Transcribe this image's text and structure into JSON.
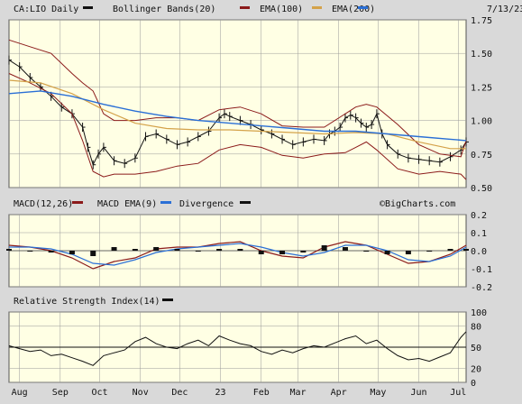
{
  "header": {
    "symbol_label": "CA:LIO Daily",
    "legend": [
      {
        "label": "Bollinger Bands(20)",
        "color": "#8b1a1a"
      },
      {
        "label": "EMA(100)",
        "color": "#d4a24a"
      },
      {
        "label": "EMA(200)",
        "color": "#2a6fd6"
      }
    ],
    "date": "7/13/23",
    "price_swatch_color": "#111111"
  },
  "watermark": "©BigCharts.com",
  "macd_header": {
    "label": "MACD(12,26)",
    "legend": [
      {
        "label": "MACD EMA(9)",
        "color": "#2a6fd6"
      },
      {
        "label": "Divergence",
        "color": "#111111"
      }
    ],
    "macd_color": "#8b1a1a"
  },
  "rsi_header": {
    "label": "Relative Strength Index(14)",
    "swatch_color": "#111111"
  },
  "colors": {
    "bollinger": "#8b1a1a",
    "ema100": "#d4a24a",
    "ema200": "#2a6fd6",
    "price": "#111111",
    "macd": "#8b1a1a",
    "macd_signal": "#2a6fd6",
    "divergence": "#111111",
    "rsi": "#111111",
    "panel_bg": "#ffffe4"
  },
  "chart_data": [
    {
      "type": "line",
      "title": "CA:LIO Daily",
      "x_labels": [
        "Aug",
        "Sep",
        "Oct",
        "Nov",
        "Dec",
        "23",
        "Feb",
        "Mar",
        "Apr",
        "May",
        "Jun",
        "Jul"
      ],
      "x_label_days": [
        8,
        39,
        69,
        100,
        130,
        161,
        192,
        220,
        251,
        281,
        312,
        342
      ],
      "x_range": [
        0,
        348
      ],
      "ylim": [
        0.5,
        1.75
      ],
      "y_ticks": [
        "0.50",
        "0.75",
        "1.00",
        "1.25",
        "1.50",
        "1.75"
      ],
      "y_tick_values": [
        0.5,
        0.75,
        1.0,
        1.25,
        1.5,
        1.75
      ],
      "grid": true,
      "series": [
        {
          "name": "Price",
          "x": [
            0,
            8,
            16,
            24,
            32,
            40,
            48,
            56,
            60,
            64,
            68,
            72,
            80,
            88,
            96,
            104,
            112,
            120,
            128,
            136,
            144,
            152,
            160,
            164,
            168,
            176,
            184,
            192,
            200,
            208,
            216,
            224,
            232,
            240,
            244,
            248,
            252,
            256,
            260,
            264,
            268,
            272,
            276,
            280,
            284,
            288,
            296,
            304,
            312,
            320,
            328,
            336,
            344,
            348
          ],
          "y": [
            1.45,
            1.4,
            1.32,
            1.25,
            1.18,
            1.1,
            1.05,
            0.95,
            0.8,
            0.67,
            0.75,
            0.8,
            0.7,
            0.68,
            0.72,
            0.88,
            0.9,
            0.86,
            0.82,
            0.84,
            0.88,
            0.92,
            1.02,
            1.05,
            1.03,
            1.0,
            0.97,
            0.93,
            0.9,
            0.86,
            0.82,
            0.84,
            0.86,
            0.85,
            0.9,
            0.92,
            0.95,
            1.02,
            1.04,
            1.02,
            0.98,
            0.95,
            0.97,
            1.05,
            0.9,
            0.82,
            0.75,
            0.72,
            0.71,
            0.7,
            0.69,
            0.73,
            0.78,
            0.84
          ]
        },
        {
          "name": "Bollinger Upper",
          "x": [
            0,
            16,
            32,
            48,
            56,
            64,
            72,
            80,
            96,
            112,
            128,
            144,
            160,
            176,
            192,
            208,
            224,
            240,
            256,
            264,
            272,
            280,
            296,
            312,
            328,
            344,
            348
          ],
          "y": [
            1.6,
            1.55,
            1.5,
            1.35,
            1.28,
            1.22,
            1.05,
            1.0,
            1.0,
            1.02,
            1.02,
            1.0,
            1.08,
            1.1,
            1.05,
            0.96,
            0.95,
            0.95,
            1.05,
            1.1,
            1.12,
            1.1,
            0.97,
            0.82,
            0.75,
            0.73,
            0.85
          ]
        },
        {
          "name": "Bollinger Lower",
          "x": [
            0,
            16,
            32,
            48,
            56,
            64,
            72,
            80,
            96,
            112,
            128,
            144,
            160,
            176,
            192,
            208,
            224,
            240,
            256,
            264,
            272,
            280,
            296,
            312,
            328,
            344,
            348
          ],
          "y": [
            1.35,
            1.28,
            1.2,
            1.05,
            0.85,
            0.62,
            0.58,
            0.6,
            0.6,
            0.62,
            0.66,
            0.68,
            0.78,
            0.82,
            0.8,
            0.74,
            0.72,
            0.75,
            0.76,
            0.8,
            0.84,
            0.78,
            0.64,
            0.6,
            0.62,
            0.6,
            0.56
          ]
        },
        {
          "name": "EMA(100)",
          "x": [
            0,
            24,
            48,
            72,
            96,
            120,
            144,
            168,
            192,
            216,
            240,
            264,
            288,
            312,
            336,
            348
          ],
          "y": [
            1.3,
            1.28,
            1.2,
            1.08,
            0.98,
            0.94,
            0.93,
            0.93,
            0.92,
            0.91,
            0.9,
            0.91,
            0.9,
            0.84,
            0.79,
            0.79
          ]
        },
        {
          "name": "EMA(200)",
          "x": [
            0,
            24,
            48,
            72,
            96,
            120,
            144,
            168,
            192,
            216,
            240,
            264,
            288,
            312,
            336,
            348
          ],
          "y": [
            1.2,
            1.22,
            1.18,
            1.12,
            1.07,
            1.03,
            1.0,
            0.98,
            0.96,
            0.94,
            0.92,
            0.92,
            0.9,
            0.88,
            0.86,
            0.85
          ]
        }
      ]
    },
    {
      "type": "line",
      "title": "MACD(12,26)",
      "ylim": [
        -0.2,
        0.2
      ],
      "y_ticks": [
        "0.2",
        "0.1",
        "0.0",
        "-0.1",
        "-0.2"
      ],
      "y_tick_values": [
        0.2,
        0.1,
        0.0,
        -0.1,
        -0.2
      ],
      "x_range": [
        0,
        348
      ],
      "grid": true,
      "series": [
        {
          "name": "MACD(12,26)",
          "x": [
            0,
            16,
            32,
            48,
            64,
            80,
            96,
            112,
            128,
            144,
            160,
            176,
            192,
            208,
            224,
            240,
            256,
            272,
            288,
            304,
            320,
            336,
            348
          ],
          "y": [
            0.03,
            0.02,
            0.0,
            -0.04,
            -0.1,
            -0.06,
            -0.04,
            0.01,
            0.02,
            0.02,
            0.04,
            0.05,
            0.0,
            -0.03,
            -0.04,
            0.02,
            0.05,
            0.03,
            -0.02,
            -0.07,
            -0.06,
            -0.02,
            0.03
          ]
        },
        {
          "name": "MACD EMA(9)",
          "x": [
            0,
            16,
            32,
            48,
            64,
            80,
            96,
            112,
            128,
            144,
            160,
            176,
            192,
            208,
            224,
            240,
            256,
            272,
            288,
            304,
            320,
            336,
            348
          ],
          "y": [
            0.02,
            0.02,
            0.01,
            -0.02,
            -0.07,
            -0.08,
            -0.05,
            -0.01,
            0.01,
            0.02,
            0.03,
            0.04,
            0.02,
            -0.01,
            -0.03,
            -0.01,
            0.03,
            0.03,
            0.0,
            -0.05,
            -0.06,
            -0.03,
            0.02
          ]
        },
        {
          "name": "Divergence",
          "x": [
            0,
            16,
            32,
            48,
            64,
            80,
            96,
            112,
            128,
            144,
            160,
            176,
            192,
            208,
            224,
            240,
            256,
            272,
            288,
            304,
            320,
            336,
            348
          ],
          "y": [
            0.01,
            0.0,
            -0.01,
            -0.02,
            -0.03,
            0.02,
            0.01,
            0.02,
            0.01,
            0.0,
            0.01,
            0.01,
            -0.02,
            -0.02,
            -0.01,
            0.03,
            0.02,
            0.0,
            -0.02,
            -0.02,
            0.0,
            0.01,
            0.01
          ]
        }
      ]
    },
    {
      "type": "line",
      "title": "Relative Strength Index(14)",
      "ylim": [
        0,
        100
      ],
      "y_ticks": [
        "100",
        "80",
        "50",
        "20",
        "0"
      ],
      "y_tick_values": [
        100,
        80,
        50,
        20,
        0
      ],
      "reference_line": 50,
      "x_range": [
        0,
        348
      ],
      "grid": true,
      "series": [
        {
          "name": "Relative Strength Index(14)",
          "x": [
            0,
            8,
            16,
            24,
            32,
            40,
            48,
            56,
            64,
            72,
            80,
            88,
            96,
            104,
            112,
            120,
            128,
            136,
            144,
            152,
            160,
            168,
            176,
            184,
            192,
            200,
            208,
            216,
            224,
            232,
            240,
            248,
            256,
            264,
            272,
            280,
            288,
            296,
            304,
            312,
            320,
            328,
            336,
            344,
            348
          ],
          "y": [
            52,
            48,
            44,
            46,
            38,
            40,
            35,
            30,
            24,
            38,
            42,
            46,
            58,
            64,
            55,
            50,
            48,
            55,
            60,
            52,
            66,
            60,
            55,
            52,
            44,
            40,
            46,
            42,
            48,
            52,
            50,
            56,
            62,
            66,
            55,
            60,
            48,
            38,
            32,
            34,
            30,
            36,
            42,
            64,
            72
          ]
        }
      ]
    }
  ]
}
